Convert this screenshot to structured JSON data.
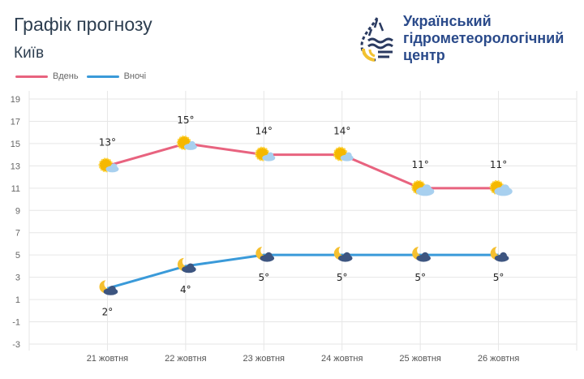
{
  "header": {
    "title": "Графік прогнозу",
    "city": "Київ"
  },
  "organization": {
    "line1": "Український",
    "line2": "гідрометеорологічний",
    "line3": "центр"
  },
  "chart_data": {
    "type": "line",
    "categories": [
      "21 жовтня",
      "22 жовтня",
      "23 жовтня",
      "24 жовтня",
      "25 жовтня",
      "26 жовтня"
    ],
    "series": [
      {
        "name": "Вдень",
        "color": "#e8637f",
        "values": [
          13,
          15,
          14,
          14,
          11,
          11
        ],
        "labels": [
          "13°",
          "15°",
          "14°",
          "14°",
          "11°",
          "11°"
        ],
        "icons": [
          "sun-cloud",
          "sun-cloud",
          "sun-cloud",
          "sun-cloud",
          "sun-cloudy",
          "sun-cloudy"
        ]
      },
      {
        "name": "Вночі",
        "color": "#3a9ad9",
        "values": [
          2,
          4,
          5,
          5,
          5,
          5
        ],
        "labels": [
          "2°",
          "4°",
          "5°",
          "5°",
          "5°",
          "5°"
        ],
        "icons": [
          "moon-cloud",
          "moon-cloud",
          "moon-cloud",
          "moon-cloud",
          "moon-cloud",
          "moon-cloud"
        ]
      }
    ],
    "yticks": [
      19,
      17,
      15,
      13,
      11,
      9,
      7,
      5,
      3,
      1,
      -1,
      -3
    ],
    "ylim": [
      -3,
      19
    ],
    "grid": true,
    "legend": "top-left"
  }
}
